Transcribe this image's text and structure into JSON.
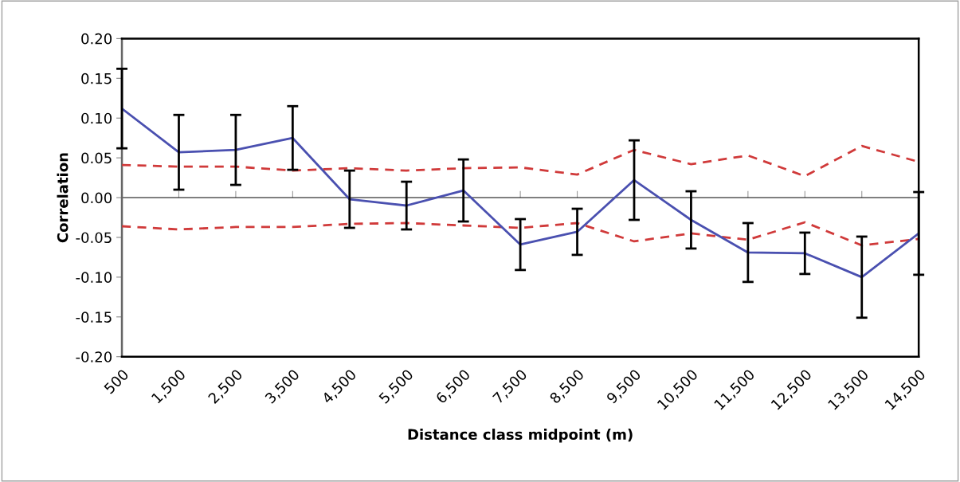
{
  "chart_data": {
    "type": "line",
    "xlabel": "Distance class midpoint (m)",
    "ylabel": "Correlation",
    "categories": [
      "500",
      "1,500",
      "2,500",
      "3,500",
      "4,500",
      "5,500",
      "6,500",
      "7,500",
      "8,500",
      "9,500",
      "10,500",
      "11,500",
      "12,500",
      "13,500",
      "14,500"
    ],
    "series": [
      {
        "color": "#d03a3a",
        "line_style": "dashed",
        "values": [
          0.041,
          0.039,
          0.039,
          0.034,
          0.037,
          0.034,
          0.037,
          0.038,
          0.029,
          0.06,
          0.042,
          0.053,
          0.027,
          0.065,
          0.045
        ]
      },
      {
        "color": "#d03a3a",
        "line_style": "dashed",
        "values": [
          -0.036,
          -0.04,
          -0.037,
          -0.037,
          -0.033,
          -0.032,
          -0.035,
          -0.038,
          -0.032,
          -0.055,
          -0.045,
          -0.053,
          -0.031,
          -0.06,
          -0.052
        ]
      },
      {
        "color": "#4a50b0",
        "line_style": "solid",
        "values": [
          0.112,
          0.057,
          0.06,
          0.075,
          -0.002,
          -0.01,
          0.009,
          -0.059,
          -0.043,
          0.022,
          -0.028,
          -0.069,
          -0.07,
          -0.1,
          -0.045
        ],
        "errors": [
          0.05,
          0.047,
          0.044,
          0.04,
          0.036,
          0.03,
          0.039,
          0.032,
          0.029,
          0.05,
          0.036,
          0.037,
          0.026,
          0.051,
          0.052
        ]
      }
    ],
    "ylim": [
      -0.2,
      0.2
    ],
    "yticks": [
      {
        "value": 0.2,
        "label": "0.20"
      },
      {
        "value": 0.15,
        "label": "0.15"
      },
      {
        "value": 0.1,
        "label": "0.10"
      },
      {
        "value": 0.05,
        "label": "0.05"
      },
      {
        "value": 0,
        "label": "0.00"
      },
      {
        "value": -0.05,
        "label": "-0.05"
      },
      {
        "value": -0.1,
        "label": "-0.10"
      },
      {
        "value": -0.15,
        "label": "-0.15"
      },
      {
        "value": -0.2,
        "label": "-0.20"
      }
    ],
    "marker": "none"
  }
}
